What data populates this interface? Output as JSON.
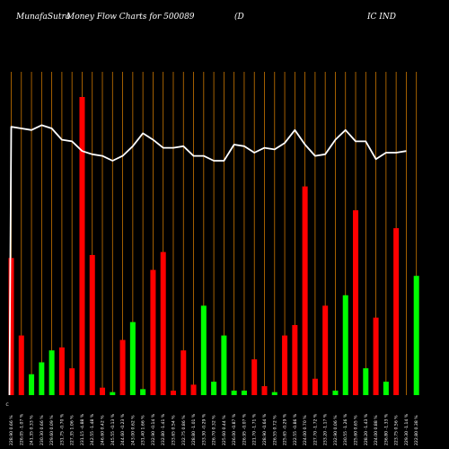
{
  "title": {
    "site": "MunafaSutra",
    "text": "Money Flow  Charts for 500089",
    "company_left": "(D",
    "company_right": "IC IND"
  },
  "chart_data": {
    "type": "bar",
    "title": "MunafaSutra  Money Flow  Charts for 500089 (D IC IND",
    "xlabel": "",
    "ylabel": "",
    "ylim": [
      0,
      100
    ],
    "grid": "vertical",
    "legend": "none",
    "colors": {
      "up": "#00ff00",
      "down": "#ff0000",
      "line": "#ffffff",
      "grid": "#cc7700",
      "background": "#000000"
    },
    "first_tick_prefix": "C",
    "categories": [
      "228.90 0.66 %",
      "226.05 -1.07 %",
      "241.35 0.33 %",
      "230.30 0.66 %",
      "229.60 0.09 %",
      "231.75 -0.70 %",
      "227.35 1.06 %",
      "231.15 -4.88 %",
      "242.55 -1.48 %",
      "246.60 0.42 %",
      "245.55 -0.13 %",
      "244.60 -0.23 %",
      "243.00 0.62 %",
      "231.40 1.66 %",
      "232.90 -0.14 %",
      "232.80 -1.41 %",
      "233.65 0.54 %",
      "232.75 0.86 %",
      "228.80 -1.01 %",
      "233.30 -0.29 %",
      "226.70 0.32 %",
      "225.60 0.44 %",
      "226.00 -0.87 %",
      "226.95 -0.07 %",
      "221.70 -1.71 %",
      "228.90 -0.64 %",
      "226.55 0.72 %",
      "225.65 -0.29 %",
      "222.55 -0.86 %",
      "224.00 0.70 %",
      "227.70 -1.72 %",
      "233.20 -1.17 %",
      "232.90 0.06 %",
      "230.55 -1.26 %",
      "225.60 0.65 %",
      "228.20 -1.43 %",
      "224.00 0.88 %",
      "236.80 -1.33 %",
      "223.75 0.56 %",
      "229.30 -1.14 %",
      "222.80 0.38 %"
    ],
    "bars": [
      {
        "value": 46,
        "direction": "down"
      },
      {
        "value": 20,
        "direction": "down"
      },
      {
        "value": 7,
        "direction": "up"
      },
      {
        "value": 11,
        "direction": "up"
      },
      {
        "value": 15,
        "direction": "up"
      },
      {
        "value": 16,
        "direction": "down"
      },
      {
        "value": 9,
        "direction": "down"
      },
      {
        "value": 100,
        "direction": "down"
      },
      {
        "value": 47,
        "direction": "down"
      },
      {
        "value": 2.5,
        "direction": "down"
      },
      {
        "value": 1,
        "direction": "up"
      },
      {
        "value": 18.5,
        "direction": "down"
      },
      {
        "value": 24.5,
        "direction": "up"
      },
      {
        "value": 2,
        "direction": "up"
      },
      {
        "value": 42,
        "direction": "down"
      },
      {
        "value": 48,
        "direction": "down"
      },
      {
        "value": 1.5,
        "direction": "down"
      },
      {
        "value": 15,
        "direction": "down"
      },
      {
        "value": 3.5,
        "direction": "down"
      },
      {
        "value": 30,
        "direction": "up"
      },
      {
        "value": 4.5,
        "direction": "up"
      },
      {
        "value": 20,
        "direction": "up"
      },
      {
        "value": 1.5,
        "direction": "up"
      },
      {
        "value": 1.5,
        "direction": "up"
      },
      {
        "value": 12,
        "direction": "down"
      },
      {
        "value": 3,
        "direction": "down"
      },
      {
        "value": 1,
        "direction": "up"
      },
      {
        "value": 20,
        "direction": "down"
      },
      {
        "value": 23.5,
        "direction": "down"
      },
      {
        "value": 70,
        "direction": "down"
      },
      {
        "value": 5.5,
        "direction": "down"
      },
      {
        "value": 30,
        "direction": "down"
      },
      {
        "value": 1.5,
        "direction": "up"
      },
      {
        "value": 33.5,
        "direction": "up"
      },
      {
        "value": 62,
        "direction": "down"
      },
      {
        "value": 9,
        "direction": "up"
      },
      {
        "value": 26,
        "direction": "down"
      },
      {
        "value": 4.5,
        "direction": "up"
      },
      {
        "value": 56,
        "direction": "down"
      },
      {
        "value": 0,
        "direction": "none"
      },
      {
        "value": 40,
        "direction": "up"
      }
    ],
    "money_flow_line": [
      83,
      82.5,
      82,
      83.5,
      82.5,
      79,
      78.5,
      75.5,
      74.5,
      74,
      72.5,
      74,
      77,
      81,
      79,
      76.5,
      76.5,
      77,
      74,
      74,
      72.5,
      72.5,
      77.5,
      77,
      75,
      76.5,
      76,
      78,
      82,
      77.5,
      74,
      74.5,
      79,
      82,
      78.5,
      78.5,
      73,
      75,
      75,
      75.5
    ]
  }
}
